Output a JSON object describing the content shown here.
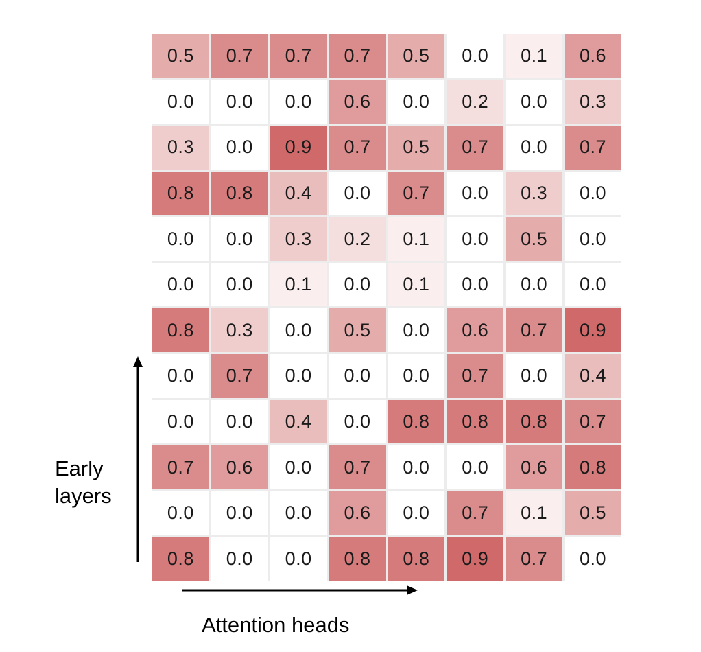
{
  "chart_data": {
    "type": "heatmap",
    "title": "",
    "xlabel": "Attention heads",
    "ylabel_lines": [
      "Early",
      "layers"
    ],
    "n_rows": 12,
    "n_cols": 8,
    "vmin": 0.0,
    "vmax": 0.9,
    "color_low": "#ffffff",
    "color_high": "#d06a6a",
    "values": [
      [
        0.5,
        0.7,
        0.7,
        0.7,
        0.5,
        0.0,
        0.1,
        0.6
      ],
      [
        0.0,
        0.0,
        0.0,
        0.6,
        0.0,
        0.2,
        0.0,
        0.3
      ],
      [
        0.3,
        0.0,
        0.9,
        0.7,
        0.5,
        0.7,
        0.0,
        0.7
      ],
      [
        0.8,
        0.8,
        0.4,
        0.0,
        0.7,
        0.0,
        0.3,
        0.0
      ],
      [
        0.0,
        0.0,
        0.3,
        0.2,
        0.1,
        0.0,
        0.5,
        0.0
      ],
      [
        0.0,
        0.0,
        0.1,
        0.0,
        0.1,
        0.0,
        0.0,
        0.0
      ],
      [
        0.8,
        0.3,
        0.0,
        0.5,
        0.0,
        0.6,
        0.7,
        0.9
      ],
      [
        0.0,
        0.7,
        0.0,
        0.0,
        0.0,
        0.7,
        0.0,
        0.4
      ],
      [
        0.0,
        0.0,
        0.4,
        0.0,
        0.8,
        0.8,
        0.8,
        0.7
      ],
      [
        0.7,
        0.6,
        0.0,
        0.7,
        0.0,
        0.0,
        0.6,
        0.8
      ],
      [
        0.0,
        0.0,
        0.0,
        0.6,
        0.0,
        0.7,
        0.1,
        0.5
      ],
      [
        0.8,
        0.0,
        0.0,
        0.8,
        0.8,
        0.9,
        0.7,
        0.0
      ]
    ]
  }
}
